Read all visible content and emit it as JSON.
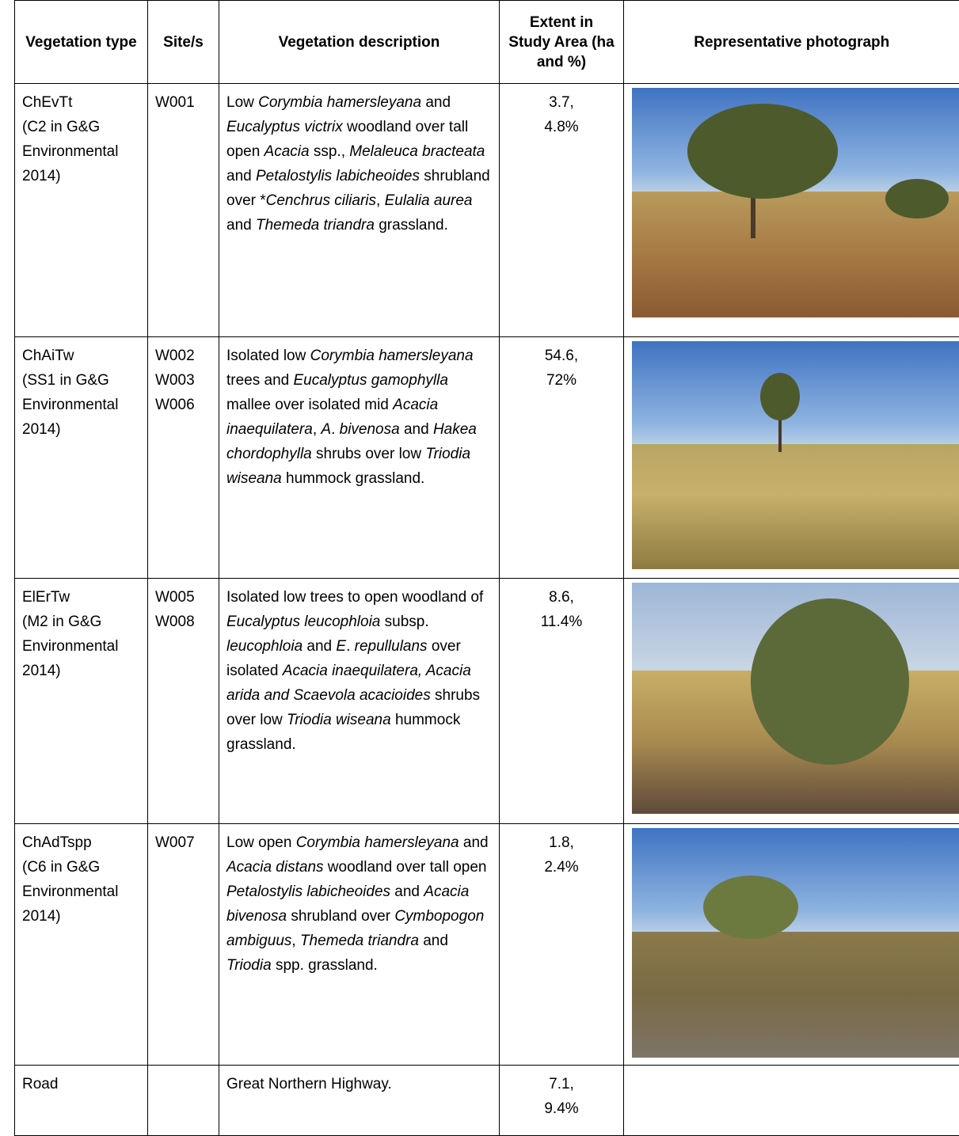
{
  "table": {
    "header": [
      "Vegetation type",
      "Site/s",
      "Vegetation description",
      "Extent in Study Area (ha and %)",
      "Representative photograph"
    ],
    "rows": [
      {
        "type": "ChEvTt",
        "reference": "(C2 in G&G Environmental 2014)",
        "sites": [
          "W001"
        ],
        "description": [
          {
            "text": "Low ",
            "italic": false
          },
          {
            "text": "Corymbia hamersleyana",
            "italic": true
          },
          {
            "text": " and ",
            "italic": false
          },
          {
            "text": "Eucalyptus victrix",
            "italic": true
          },
          {
            "text": " woodland over tall open ",
            "italic": false
          },
          {
            "text": "Acacia",
            "italic": true
          },
          {
            "text": " ssp., ",
            "italic": false
          },
          {
            "text": "Melaleuca bracteata",
            "italic": true
          },
          {
            "text": " and ",
            "italic": false
          },
          {
            "text": "Petalostylis labicheoides",
            "italic": true
          },
          {
            "text": " shrubland over *",
            "italic": false
          },
          {
            "text": "Cenchrus ciliaris",
            "italic": true
          },
          {
            "text": ", ",
            "italic": false
          },
          {
            "text": "Eulalia aurea",
            "italic": true
          },
          {
            "text": " and ",
            "italic": false
          },
          {
            "text": "Themeda triandra",
            "italic": true
          },
          {
            "text": " grassland.",
            "italic": false
          }
        ],
        "extent": [
          "3.7,",
          "4.8%"
        ]
      },
      {
        "type": "ChAiTw",
        "reference": "(SS1 in G&G Environmental 2014)",
        "sites": [
          "W002",
          "W003",
          "W006"
        ],
        "description": [
          {
            "text": "Isolated low ",
            "italic": false
          },
          {
            "text": "Corymbia hamersleyana",
            "italic": true
          },
          {
            "text": " trees and ",
            "italic": false
          },
          {
            "text": "Eucalyptus gamophylla",
            "italic": true
          },
          {
            "text": " mallee over isolated mid ",
            "italic": false
          },
          {
            "text": "Acacia inaequilatera",
            "italic": true
          },
          {
            "text": ", ",
            "italic": false
          },
          {
            "text": "A",
            "italic": true
          },
          {
            "text": ". ",
            "italic": false
          },
          {
            "text": "bivenosa",
            "italic": true
          },
          {
            "text": " and ",
            "italic": false
          },
          {
            "text": "Hakea chordophylla",
            "italic": true
          },
          {
            "text": " shrubs over low ",
            "italic": false
          },
          {
            "text": "Triodia wiseana",
            "italic": true
          },
          {
            "text": " hummock grassland.",
            "italic": false
          }
        ],
        "extent": [
          "54.6,",
          "72%"
        ]
      },
      {
        "type": "ElErTw",
        "reference": "(M2 in G&G Environmental 2014)",
        "sites": [
          "W005",
          "W008"
        ],
        "description": [
          {
            "text": "Isolated low trees to open woodland of ",
            "italic": false
          },
          {
            "text": "Eucalyptus leucophloia",
            "italic": true
          },
          {
            "text": " subsp. ",
            "italic": false
          },
          {
            "text": "leucophloia",
            "italic": true
          },
          {
            "text": " and ",
            "italic": false
          },
          {
            "text": "E",
            "italic": true
          },
          {
            "text": ". ",
            "italic": false
          },
          {
            "text": "repullulans",
            "italic": true
          },
          {
            "text": " over isolated ",
            "italic": false
          },
          {
            "text": "Acacia inaequilatera, Acacia arida and Scaevola acacioides",
            "italic": true
          },
          {
            "text": " shrubs over low ",
            "italic": false
          },
          {
            "text": "Triodia wiseana",
            "italic": true
          },
          {
            "text": " hummock grassland.",
            "italic": false
          }
        ],
        "extent": [
          "8.6,",
          "11.4%"
        ]
      },
      {
        "type": "ChAdTspp",
        "reference": "(C6 in G&G Environmental 2014)",
        "sites": [
          "W007"
        ],
        "description": [
          {
            "text": "Low open ",
            "italic": false
          },
          {
            "text": "Corymbia hamersleyana",
            "italic": true
          },
          {
            "text": " and ",
            "italic": false
          },
          {
            "text": "Acacia distans",
            "italic": true
          },
          {
            "text": " woodland over tall open ",
            "italic": false
          },
          {
            "text": "Petalostylis labicheoides",
            "italic": true
          },
          {
            "text": " and ",
            "italic": false
          },
          {
            "text": "Acacia bivenosa",
            "italic": true
          },
          {
            "text": " shrubland over ",
            "italic": false
          },
          {
            "text": "Cymbopogon ambiguus",
            "italic": true
          },
          {
            "text": ", ",
            "italic": false
          },
          {
            "text": "Themeda triandra",
            "italic": true
          },
          {
            "text": " and ",
            "italic": false
          },
          {
            "text": "Triodia",
            "italic": true
          },
          {
            "text": " spp. grassland.",
            "italic": false
          }
        ],
        "extent": [
          "1.8,",
          "2.4%"
        ]
      },
      {
        "type": "Road",
        "sites": [],
        "description": [
          {
            "text": "Great Northern Highway.",
            "italic": false
          }
        ],
        "extent": [
          "7.1,",
          "9.4%"
        ]
      }
    ]
  }
}
